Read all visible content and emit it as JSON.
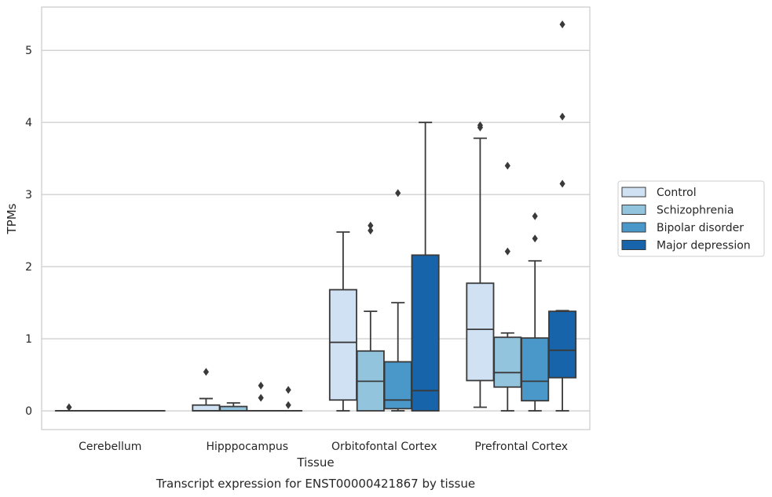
{
  "caption": "Transcript expression for ENST00000421867 by tissue",
  "colors": {
    "Control": "#cfe1f2",
    "Schizophrenia": "#93c4de",
    "Bipolar disorder": "#4a98c9",
    "Major depression": "#1764ab",
    "line": "#3a3a3a",
    "grid": "#cccccc"
  },
  "chart_data": {
    "type": "box",
    "title": "",
    "xlabel": "Tissue",
    "ylabel": "TPMs",
    "ylim": [
      -0.26,
      5.6
    ],
    "yticks": [
      0,
      1,
      2,
      3,
      4,
      5
    ],
    "grid": "horizontal",
    "legend_position": "right",
    "categories": [
      "Cerebellum",
      "Hipppocampus",
      "Orbitofontal Cortex",
      "Prefrontal Cortex"
    ],
    "series": [
      {
        "name": "Control",
        "boxes": [
          {
            "min": 0,
            "q1": 0,
            "median": 0,
            "q3": 0,
            "max": 0,
            "outliers": [
              0.05
            ]
          },
          {
            "min": 0,
            "q1": 0,
            "median": 0,
            "q3": 0.08,
            "max": 0.17,
            "outliers": [
              0.54
            ]
          },
          {
            "min": 0,
            "q1": 0.15,
            "median": 0.95,
            "q3": 1.68,
            "max": 2.48,
            "outliers": []
          },
          {
            "min": 0.05,
            "q1": 0.42,
            "median": 1.13,
            "q3": 1.77,
            "max": 3.78,
            "outliers": [
              3.93,
              3.96
            ]
          }
        ]
      },
      {
        "name": "Schizophrenia",
        "boxes": [
          {
            "min": 0,
            "q1": 0,
            "median": 0,
            "q3": 0,
            "max": 0,
            "outliers": []
          },
          {
            "min": 0,
            "q1": 0,
            "median": 0,
            "q3": 0.06,
            "max": 0.11,
            "outliers": []
          },
          {
            "min": 0,
            "q1": 0,
            "median": 0.41,
            "q3": 0.83,
            "max": 1.38,
            "outliers": [
              2.5,
              2.57
            ]
          },
          {
            "min": 0,
            "q1": 0.33,
            "median": 0.53,
            "q3": 1.02,
            "max": 1.08,
            "outliers": [
              2.21,
              3.4
            ]
          }
        ]
      },
      {
        "name": "Bipolar disorder",
        "boxes": [
          {
            "min": 0,
            "q1": 0,
            "median": 0,
            "q3": 0,
            "max": 0,
            "outliers": []
          },
          {
            "min": 0,
            "q1": 0,
            "median": 0,
            "q3": 0,
            "max": 0,
            "outliers": [
              0.18,
              0.35
            ]
          },
          {
            "min": 0,
            "q1": 0.03,
            "median": 0.15,
            "q3": 0.68,
            "max": 1.5,
            "outliers": [
              3.02
            ]
          },
          {
            "min": 0,
            "q1": 0.14,
            "median": 0.41,
            "q3": 1.01,
            "max": 2.08,
            "outliers": [
              2.39,
              2.7
            ]
          }
        ]
      },
      {
        "name": "Major depression",
        "boxes": [
          {
            "min": 0,
            "q1": 0,
            "median": 0,
            "q3": 0,
            "max": 0,
            "outliers": []
          },
          {
            "min": 0,
            "q1": 0,
            "median": 0,
            "q3": 0,
            "max": 0,
            "outliers": [
              0.08,
              0.29
            ]
          },
          {
            "min": 0,
            "q1": 0,
            "median": 0.28,
            "q3": 2.16,
            "max": 4.0,
            "outliers": []
          },
          {
            "min": 0,
            "q1": 0.46,
            "median": 0.84,
            "q3": 1.38,
            "max": 1.39,
            "outliers": [
              3.15,
              4.08,
              5.36
            ]
          }
        ]
      }
    ]
  }
}
